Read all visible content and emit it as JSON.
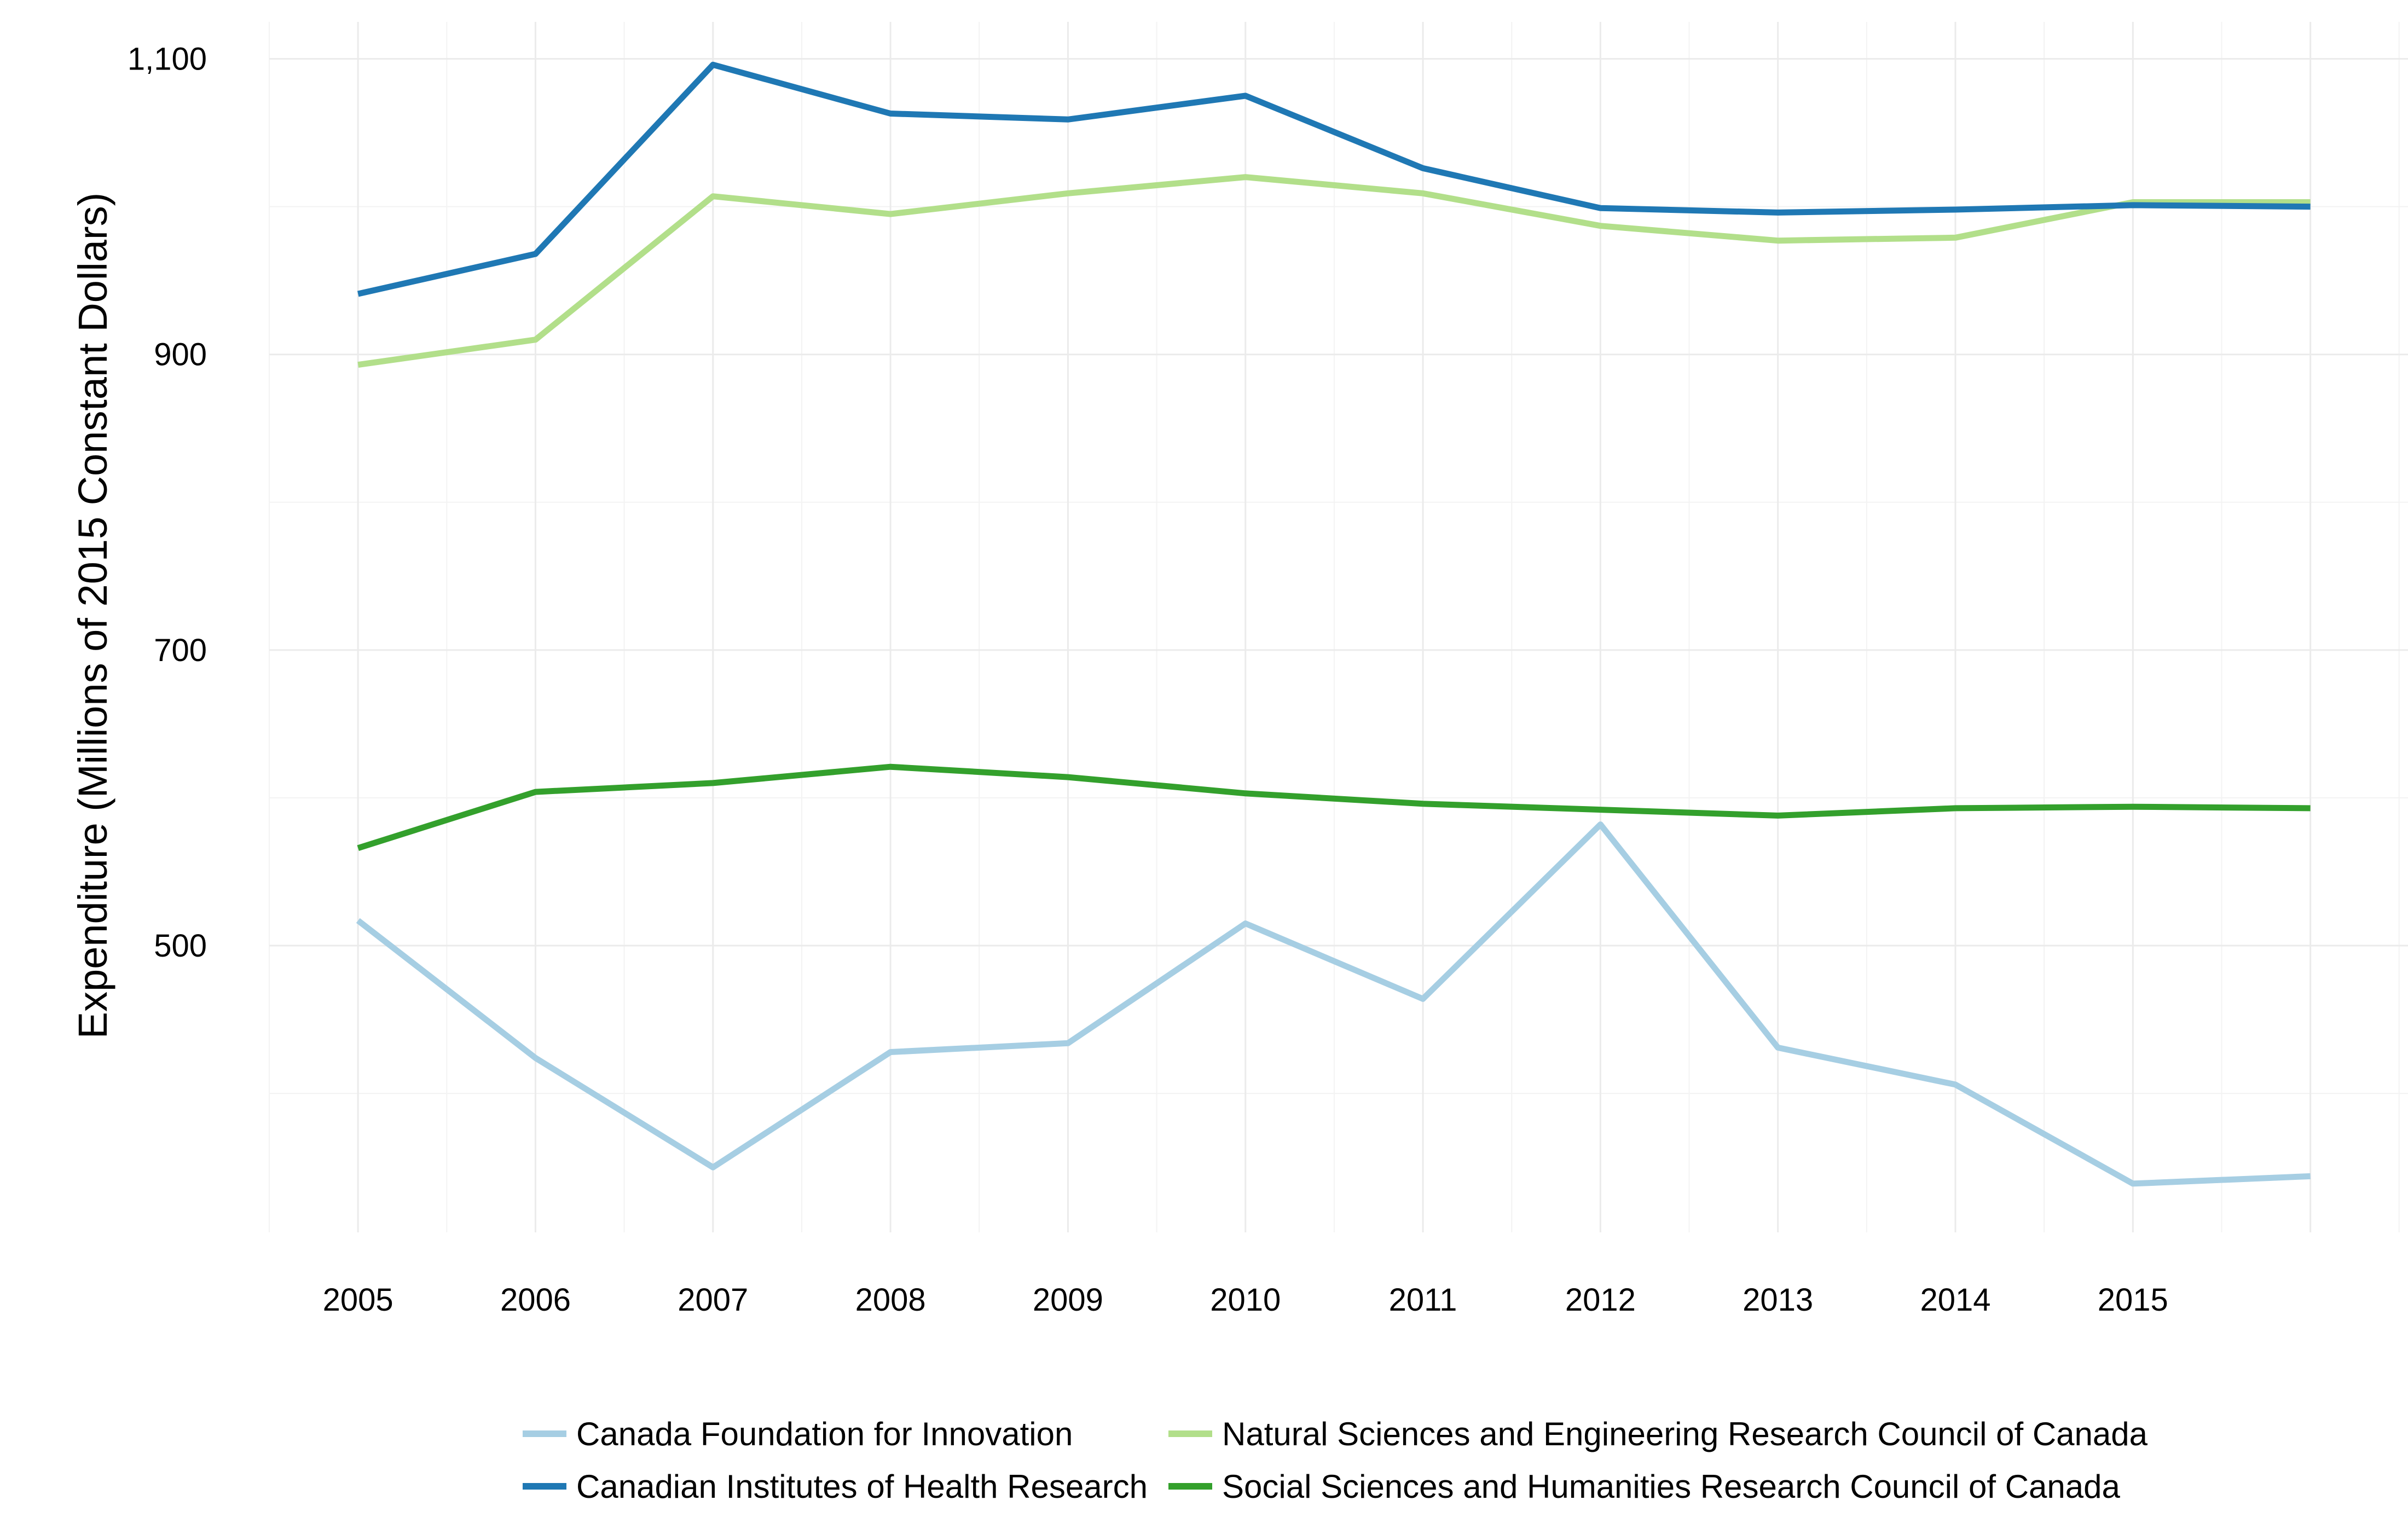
{
  "chart_data": {
    "type": "line",
    "title": "",
    "xlabel": "",
    "ylabel": "Expenditure (Millions of 2015 Constant Dollars)",
    "x": [
      2005,
      2006,
      2007,
      2008,
      2009,
      2010,
      2011,
      2012,
      2013,
      2014,
      2015,
      2016
    ],
    "x_tick_labels": [
      "2005",
      "2006",
      "2007",
      "2008",
      "2009",
      "2010",
      "2011",
      "2012",
      "2013",
      "2014",
      "2015"
    ],
    "y_tick_values": [
      500,
      700,
      900,
      1100
    ],
    "y_tick_labels": [
      "500",
      "700",
      "900",
      "1,100"
    ],
    "xlim": [
      2004.5,
      2016.55
    ],
    "ylim": [
      306,
      1125
    ],
    "grid": true,
    "legend_position": "bottom",
    "series": [
      {
        "name": "Canada Foundation for Innovation",
        "color": "#a6cee3",
        "values": [
          517,
          424,
          350,
          428,
          434,
          515,
          464,
          582,
          431,
          406,
          339,
          344
        ]
      },
      {
        "name": "Natural Sciences and Engineering Research Council of Canada",
        "color": "#b2df8a",
        "values": [
          893,
          910,
          1007,
          995,
          1009,
          1020,
          1009,
          987,
          977,
          979,
          1003,
          1003
        ]
      },
      {
        "name": "Canadian Institutes of Health Research",
        "color": "#1f78b4",
        "values": [
          941,
          968,
          1096,
          1063,
          1059,
          1075,
          1026,
          999,
          996,
          998,
          1001,
          1000
        ]
      },
      {
        "name": "Social Sciences and Humanities Research Council of Canada",
        "color": "#33a02c",
        "values": [
          566,
          604,
          610,
          621,
          614,
          603,
          596,
          592,
          588,
          593,
          594,
          593
        ]
      }
    ]
  }
}
